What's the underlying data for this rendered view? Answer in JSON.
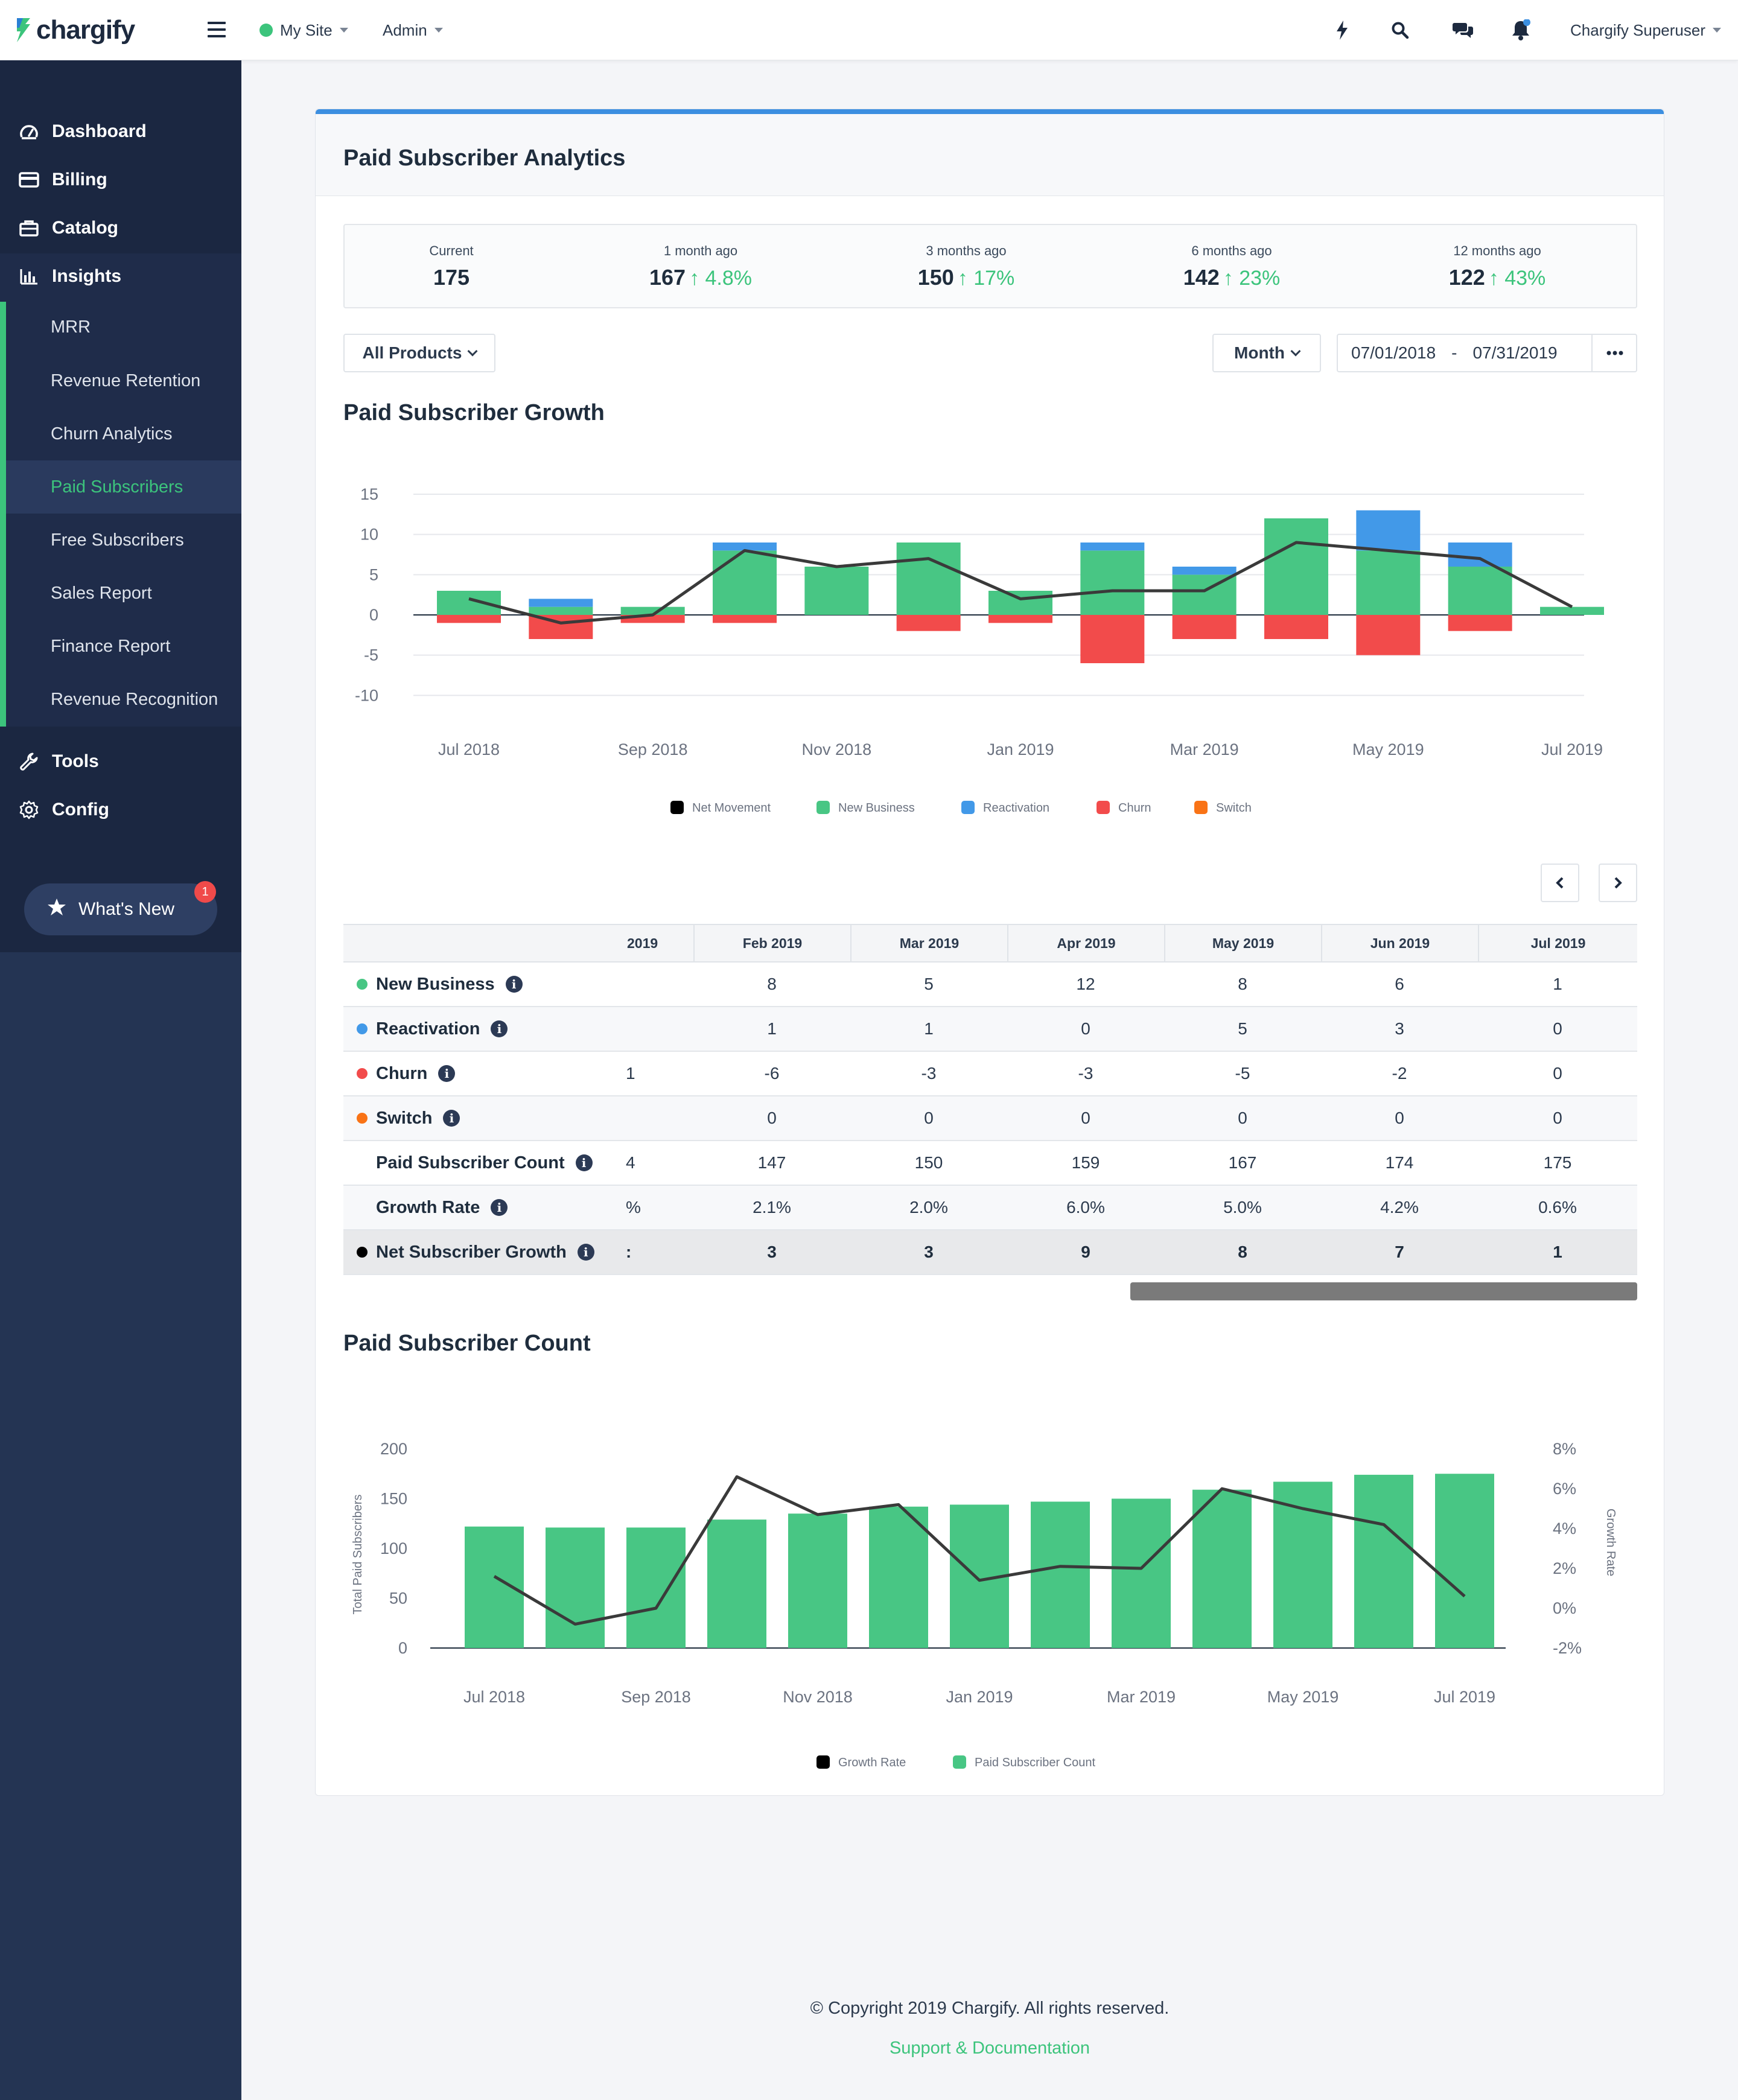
{
  "header": {
    "logo_text": "chargify",
    "site_label": "My Site",
    "admin_label": "Admin",
    "user_label": "Chargify Superuser"
  },
  "sidebar": {
    "items": [
      {
        "label": "Dashboard",
        "icon": "dashboard-icon"
      },
      {
        "label": "Billing",
        "icon": "credit-card-icon"
      },
      {
        "label": "Catalog",
        "icon": "catalog-icon"
      },
      {
        "label": "Insights",
        "icon": "bar-chart-icon"
      },
      {
        "label": "Tools",
        "icon": "wrench-icon"
      },
      {
        "label": "Config",
        "icon": "gear-icon"
      }
    ],
    "insights_sub": [
      {
        "label": "MRR"
      },
      {
        "label": "Revenue Retention"
      },
      {
        "label": "Churn Analytics"
      },
      {
        "label": "Paid Subscribers",
        "active": true
      },
      {
        "label": "Free Subscribers"
      },
      {
        "label": "Sales Report"
      },
      {
        "label": "Finance Report"
      },
      {
        "label": "Revenue Recognition"
      }
    ],
    "whats_new_label": "What's New",
    "whats_new_badge": "1"
  },
  "card": {
    "title": "Paid Subscriber Analytics",
    "stats": [
      {
        "label": "Current",
        "value": "175",
        "delta": ""
      },
      {
        "label": "1 month ago",
        "value": "167",
        "delta": "4.8%"
      },
      {
        "label": "3 months ago",
        "value": "150",
        "delta": "17%"
      },
      {
        "label": "6 months ago",
        "value": "142",
        "delta": "23%"
      },
      {
        "label": "12 months ago",
        "value": "122",
        "delta": "43%"
      }
    ],
    "products_label": "All Products",
    "period_label": "Month",
    "date_from": "07/01/2018",
    "date_sep": "-",
    "date_to": "07/31/2019"
  },
  "growth_title": "Paid Subscriber Growth",
  "count_title": "Paid Subscriber Count",
  "colors": {
    "new_business": "#48c684",
    "reactivation": "#4299e8",
    "churn": "#f24b4b",
    "switch": "#f97316",
    "net": "#000000",
    "line": "#3a3a3a"
  },
  "chart_data": [
    {
      "type": "bar",
      "title": "Paid Subscriber Growth",
      "stacked": true,
      "categories": [
        "Jul 2018",
        "Aug 2018",
        "Sep 2018",
        "Oct 2018",
        "Nov 2018",
        "Dec 2018",
        "Jan 2019",
        "Feb 2019",
        "Mar 2019",
        "Apr 2019",
        "May 2019",
        "Jun 2019",
        "Jul 2019"
      ],
      "x_tick_labels": [
        "Jul 2018",
        "Sep 2018",
        "Nov 2018",
        "Jan 2019",
        "Mar 2019",
        "May 2019",
        "Jul 2019"
      ],
      "y_ticks": [
        15,
        10,
        5,
        0,
        -5,
        -10
      ],
      "ylim": [
        -10,
        15
      ],
      "series": [
        {
          "name": "Net Movement",
          "kind": "line",
          "values": [
            2,
            -1,
            0,
            8,
            6,
            7,
            2,
            3,
            3,
            9,
            8,
            7,
            1
          ]
        },
        {
          "name": "New Business",
          "values": [
            3,
            1,
            1,
            8,
            6,
            9,
            3,
            8,
            5,
            12,
            8,
            6,
            1
          ]
        },
        {
          "name": "Reactivation",
          "values": [
            0,
            1,
            0,
            1,
            0,
            0,
            0,
            1,
            1,
            0,
            5,
            3,
            0
          ]
        },
        {
          "name": "Churn",
          "values": [
            -1,
            -3,
            -1,
            -1,
            0,
            -2,
            -1,
            -6,
            -3,
            -3,
            -5,
            -2,
            0
          ]
        },
        {
          "name": "Switch",
          "values": [
            0,
            0,
            0,
            0,
            0,
            0,
            0,
            0,
            0,
            0,
            0,
            0,
            0
          ]
        }
      ],
      "legend_position": "bottom"
    },
    {
      "type": "bar",
      "title": "Paid Subscriber Count",
      "categories": [
        "Jul 2018",
        "Aug 2018",
        "Sep 2018",
        "Oct 2018",
        "Nov 2018",
        "Dec 2018",
        "Jan 2019",
        "Feb 2019",
        "Mar 2019",
        "Apr 2019",
        "May 2019",
        "Jun 2019",
        "Jul 2019"
      ],
      "x_tick_labels": [
        "Jul 2018",
        "Sep 2018",
        "Nov 2018",
        "Jan 2019",
        "Mar 2019",
        "May 2019",
        "Jul 2019"
      ],
      "ylabel": "Total Paid Subscribers",
      "y2label": "Growth Rate",
      "y_ticks": [
        200,
        150,
        100,
        50,
        0
      ],
      "y2_ticks": [
        "8%",
        "6%",
        "4%",
        "2%",
        "0%",
        "-2%"
      ],
      "ylim": [
        0,
        200
      ],
      "y2lim": [
        -2,
        8
      ],
      "series": [
        {
          "name": "Paid Subscriber Count",
          "values": [
            122,
            121,
            121,
            129,
            135,
            142,
            144,
            147,
            150,
            159,
            167,
            174,
            175
          ]
        },
        {
          "name": "Growth Rate",
          "kind": "line",
          "axis": "right",
          "values": [
            1.6,
            -0.8,
            0.0,
            6.6,
            4.7,
            5.2,
            1.4,
            2.1,
            2.0,
            6.0,
            5.0,
            4.2,
            0.6
          ]
        }
      ],
      "legend_position": "bottom"
    }
  ],
  "legend_growth": [
    "Net Movement",
    "New Business",
    "Reactivation",
    "Churn",
    "Switch"
  ],
  "legend_count": [
    "Growth Rate",
    "Paid Subscriber Count"
  ],
  "table": {
    "columns": [
      "2019",
      "Feb 2019",
      "Mar 2019",
      "Apr 2019",
      "May 2019",
      "Jun 2019",
      "Jul 2019"
    ],
    "rows": [
      {
        "label": "New Business",
        "dot": "#48c684",
        "values": [
          "",
          "8",
          "5",
          "12",
          "8",
          "6",
          "1"
        ]
      },
      {
        "label": "Reactivation",
        "dot": "#4299e8",
        "values": [
          "",
          "1",
          "1",
          "0",
          "5",
          "3",
          "0"
        ]
      },
      {
        "label": "Churn",
        "dot": "#f24b4b",
        "values": [
          "1",
          "-6",
          "-3",
          "-3",
          "-5",
          "-2",
          "0"
        ]
      },
      {
        "label": "Switch",
        "dot": "#f97316",
        "values": [
          "",
          "0",
          "0",
          "0",
          "0",
          "0",
          "0"
        ]
      },
      {
        "label": "Paid Subscriber Count",
        "dot": "",
        "values": [
          "4",
          "147",
          "150",
          "159",
          "167",
          "174",
          "175"
        ]
      },
      {
        "label": "Growth Rate",
        "dot": "",
        "values": [
          "%",
          "2.1%",
          "2.0%",
          "6.0%",
          "5.0%",
          "4.2%",
          "0.6%"
        ]
      },
      {
        "label": "Net Subscriber Growth",
        "dot": "#000000",
        "values": [
          ":",
          "3",
          "3",
          "9",
          "8",
          "7",
          "1"
        ]
      }
    ]
  },
  "footer": {
    "copyright": "© Copyright 2019 Chargify. All rights reserved.",
    "link": "Support & Documentation"
  }
}
